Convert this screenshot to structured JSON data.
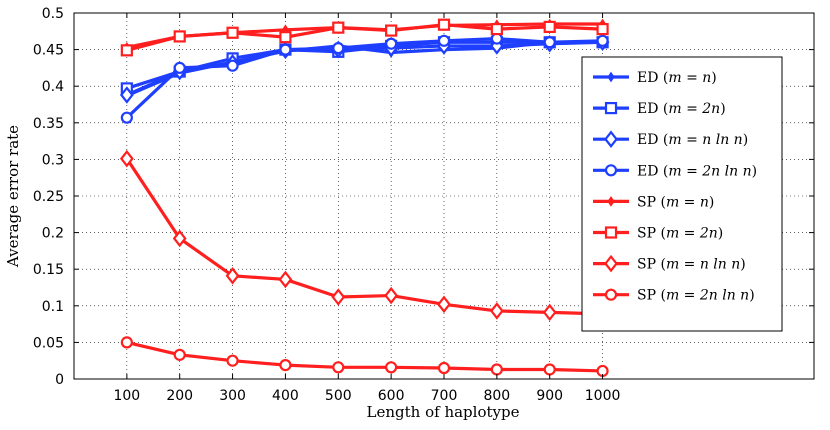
{
  "chart_data": {
    "type": "line",
    "title": "",
    "xlabel": "Length of haplotype",
    "ylabel": "Average error rate",
    "x": [
      100,
      200,
      300,
      400,
      500,
      600,
      700,
      800,
      900,
      1000
    ],
    "xlim": [
      0,
      1400
    ],
    "ylim": [
      0,
      0.5
    ],
    "xticks": [
      "100",
      "200",
      "300",
      "400",
      "500",
      "600",
      "700",
      "800",
      "900",
      "1000"
    ],
    "yticks": [
      "0",
      "0.05",
      "0.1",
      "0.15",
      "0.2",
      "0.25",
      "0.3",
      "0.35",
      "0.4",
      "0.45",
      "0.5"
    ],
    "grid": true,
    "legend_position": "right",
    "series": [
      {
        "name": "ED (m = n)",
        "legend_text": "ED (",
        "legend_math": "m = n",
        "legend_end": ")",
        "color": "#1f3fff",
        "marker": "dot",
        "values": [
          0.387,
          0.418,
          0.433,
          0.448,
          0.455,
          0.446,
          0.45,
          0.452,
          0.46,
          0.46
        ]
      },
      {
        "name": "ED (m = 2n)",
        "legend_text": "ED (",
        "legend_math": "m = 2n",
        "legend_end": ")",
        "color": "#1f3fff",
        "marker": "square",
        "values": [
          0.397,
          0.42,
          0.438,
          0.45,
          0.447,
          0.455,
          0.46,
          0.46,
          0.46,
          0.46
        ]
      },
      {
        "name": "ED (m = n ln n)",
        "legend_text": "ED (",
        "legend_math": "m = n ln n",
        "legend_end": ")",
        "color": "#1f3fff",
        "marker": "diamond",
        "values": [
          0.388,
          0.42,
          0.432,
          0.449,
          0.45,
          0.452,
          0.455,
          0.455,
          0.458,
          0.46
        ]
      },
      {
        "name": "ED (m = 2n ln n)",
        "legend_text": "ED (",
        "legend_math": "m = 2n ln n",
        "legend_end": ")",
        "color": "#1f3fff",
        "marker": "circle",
        "values": [
          0.357,
          0.425,
          0.428,
          0.45,
          0.452,
          0.458,
          0.462,
          0.465,
          0.46,
          0.462
        ]
      },
      {
        "name": "SP (m = n)",
        "legend_text": "SP (",
        "legend_math": "m = n",
        "legend_end": ")",
        "color": "#ff1f1f",
        "marker": "dot",
        "values": [
          0.453,
          0.468,
          0.473,
          0.477,
          0.48,
          0.477,
          0.483,
          0.484,
          0.485,
          0.485
        ]
      },
      {
        "name": "SP (m = 2n)",
        "legend_text": "SP (",
        "legend_math": "m = 2n",
        "legend_end": ")",
        "color": "#ff1f1f",
        "marker": "square",
        "values": [
          0.449,
          0.468,
          0.473,
          0.467,
          0.48,
          0.476,
          0.484,
          0.478,
          0.481,
          0.478
        ]
      },
      {
        "name": "SP (m = n ln n)",
        "legend_text": "SP (",
        "legend_math": "m = n ln n",
        "legend_end": ")",
        "color": "#ff1f1f",
        "marker": "diamond",
        "values": [
          0.301,
          0.192,
          0.141,
          0.136,
          0.112,
          0.114,
          0.102,
          0.093,
          0.091,
          0.089
        ]
      },
      {
        "name": "SP (m = 2n ln n)",
        "legend_text": "SP (",
        "legend_math": "m = 2n ln n",
        "legend_end": ")",
        "color": "#ff1f1f",
        "marker": "circle",
        "values": [
          0.05,
          0.033,
          0.025,
          0.019,
          0.016,
          0.016,
          0.015,
          0.013,
          0.013,
          0.011
        ]
      }
    ]
  }
}
